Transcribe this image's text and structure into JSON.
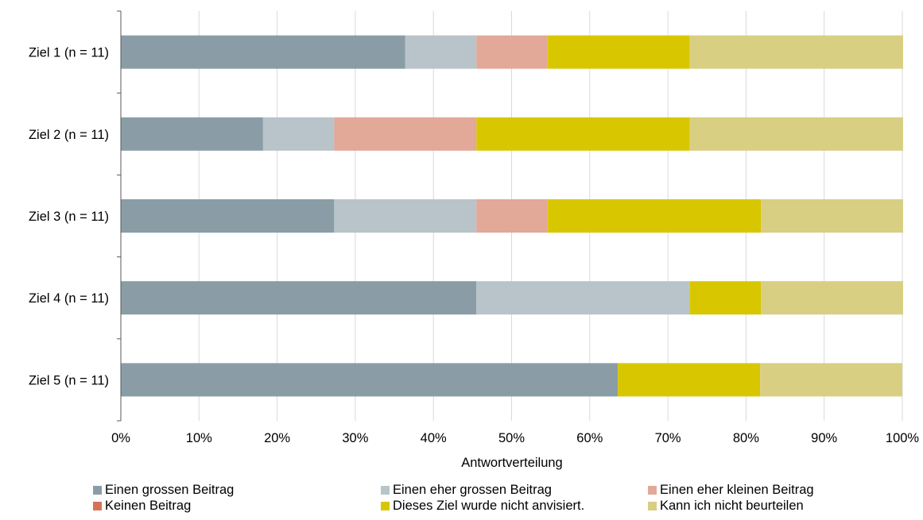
{
  "chart_data": {
    "type": "bar",
    "orientation": "horizontal",
    "stacked": "percent",
    "categories": [
      "Ziel 1 (n = 11)",
      "Ziel 2 (n = 11)",
      "Ziel 3 (n = 11)",
      "Ziel 4 (n = 11)",
      "Ziel 5 (n = 11)"
    ],
    "series": [
      {
        "name": "Einen grossen Beitrag",
        "color": "#8a9da6",
        "values": [
          36.4,
          18.2,
          27.3,
          45.5,
          63.6
        ]
      },
      {
        "name": "Einen eher grossen Beitrag",
        "color": "#b8c4c9",
        "values": [
          9.1,
          9.1,
          18.2,
          27.3,
          0
        ]
      },
      {
        "name": "Einen eher kleinen Beitrag",
        "color": "#e2a898",
        "values": [
          9.1,
          18.2,
          9.1,
          0,
          0
        ]
      },
      {
        "name": "Keinen Beitrag",
        "color": "#d67356",
        "values": [
          0,
          0,
          0,
          0,
          0
        ]
      },
      {
        "name": "Dieses Ziel wurde nicht anvisiert.",
        "color": "#d8c700",
        "values": [
          18.2,
          27.3,
          27.3,
          9.1,
          18.2
        ]
      },
      {
        "name": "Kann ich nicht beurteilen",
        "color": "#d8cf82",
        "values": [
          27.3,
          27.3,
          18.2,
          18.2,
          18.2
        ]
      }
    ],
    "xlabel": "Antwortverteilung",
    "xlim": [
      0,
      100
    ],
    "xticks": [
      "0%",
      "10%",
      "20%",
      "30%",
      "40%",
      "50%",
      "60%",
      "70%",
      "80%",
      "90%",
      "100%"
    ],
    "grid": true,
    "legend_position": "bottom"
  }
}
